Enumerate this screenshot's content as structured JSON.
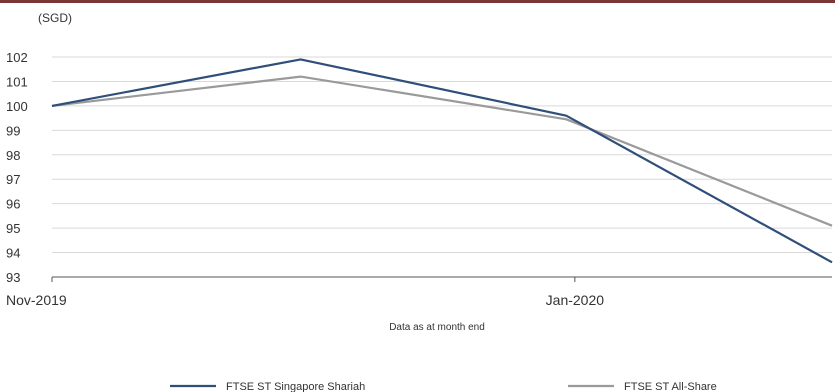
{
  "colors": {
    "top_rule": "#7a3636",
    "grid": "#d9d9d9",
    "axis": "#555555",
    "text": "#333333"
  },
  "chart_data": {
    "type": "line",
    "unit_label": "(SGD)",
    "xlabel": "Data as at month end",
    "ylabel": "",
    "x": [
      "2019-11-01",
      "2019-11-30",
      "2019-12-31",
      "2020-01-31"
    ],
    "x_ticks": [
      {
        "date": "2019-11-01",
        "label": "Nov-2019"
      },
      {
        "date": "2020-01-01",
        "label": "Jan-2020"
      }
    ],
    "ylim": [
      93,
      102
    ],
    "y_ticks": [
      93,
      94,
      95,
      96,
      97,
      98,
      99,
      100,
      101,
      102
    ],
    "grid": true,
    "legend_position": "bottom",
    "series": [
      {
        "name": "FTSE ST Singapore Shariah",
        "color": "#2f4f7a",
        "values": [
          100.0,
          101.9,
          99.6,
          93.6
        ]
      },
      {
        "name": "FTSE ST All-Share",
        "color": "#9a9a9a",
        "values": [
          100.0,
          101.2,
          99.45,
          95.1
        ]
      }
    ]
  }
}
